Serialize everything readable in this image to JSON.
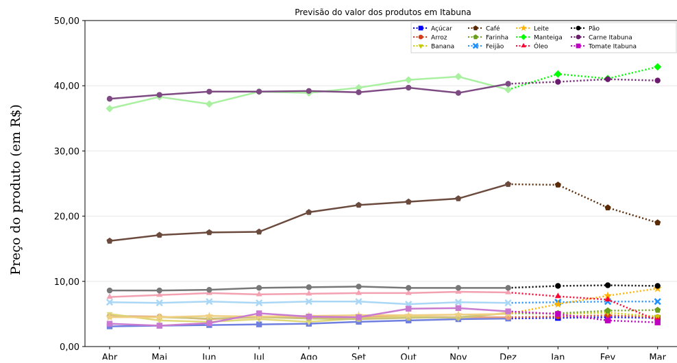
{
  "chart_data": {
    "type": "line",
    "title": "Previsão do valor dos produtos em Itabuna",
    "xlabel": "",
    "ylabel": "Preço do produto (em R$)",
    "categories": [
      "Abr",
      "Mai",
      "Jun",
      "Jul",
      "Ago",
      "Set",
      "Out",
      "Nov",
      "Dez",
      "Jan",
      "Fev",
      "Mar"
    ],
    "ylim": [
      0,
      50
    ],
    "yticks": [
      0,
      10,
      20,
      30,
      40,
      50
    ],
    "ytick_labels": [
      "0,00",
      "10,00",
      "20,00",
      "30,00",
      "40,00",
      "50,00"
    ],
    "legend_position": "top-right",
    "grid": "horizontal",
    "series": [
      {
        "name": "Açúcar",
        "marker": "square",
        "hist_color": "#6f7fe0",
        "fc_color": "#0000ff",
        "values": [
          3.1,
          3.2,
          3.3,
          3.4,
          3.5,
          3.8,
          4.0,
          4.2,
          4.3,
          4.4,
          4.5,
          4.4
        ]
      },
      {
        "name": "Arroz",
        "marker": "circle",
        "hist_color": "#e8a07c",
        "fc_color": "#d43d1a",
        "values": [
          4.7,
          4.6,
          4.2,
          4.5,
          4.4,
          4.5,
          4.6,
          4.5,
          4.5,
          4.6,
          4.8,
          4.5
        ]
      },
      {
        "name": "Banana",
        "marker": "triangle-down",
        "hist_color": "#e0d878",
        "fc_color": "#c9c900",
        "values": [
          5.0,
          4.0,
          3.8,
          4.2,
          3.8,
          4.3,
          4.6,
          4.4,
          5.2,
          5.0,
          5.2,
          4.6
        ]
      },
      {
        "name": "Café",
        "marker": "pentagon",
        "hist_color": "#6b4a3e",
        "fc_color": "#5a2a06",
        "values": [
          16.2,
          17.1,
          17.5,
          17.6,
          20.6,
          21.7,
          22.2,
          22.7,
          24.9,
          24.8,
          21.3,
          19.0
        ]
      },
      {
        "name": "Farinha",
        "marker": "pentagon",
        "hist_color": "#c9c27a",
        "fc_color": "#6b9e1a",
        "values": [
          4.6,
          4.5,
          4.3,
          4.5,
          4.3,
          4.2,
          4.4,
          4.5,
          5.1,
          5.1,
          5.5,
          5.6
        ]
      },
      {
        "name": "Feijão",
        "marker": "x",
        "hist_color": "#a9d7f5",
        "fc_color": "#1e90ff",
        "values": [
          6.8,
          6.7,
          6.9,
          6.7,
          6.9,
          6.9,
          6.5,
          6.8,
          6.7,
          6.8,
          6.9,
          6.9
        ]
      },
      {
        "name": "Leite",
        "marker": "star",
        "hist_color": "#f0d080",
        "fc_color": "#ffb300",
        "values": [
          4.5,
          4.5,
          4.7,
          4.6,
          4.7,
          4.8,
          4.8,
          4.9,
          5.0,
          6.5,
          7.8,
          8.9
        ]
      },
      {
        "name": "Manteiga",
        "marker": "diamond",
        "hist_color": "#a9f0a0",
        "fc_color": "#00ff00",
        "values": [
          36.5,
          38.3,
          37.2,
          39.1,
          38.9,
          39.7,
          40.9,
          41.4,
          39.4,
          41.8,
          41.1,
          42.9
        ]
      },
      {
        "name": "Óleo",
        "marker": "triangle-up",
        "hist_color": "#f3a0b0",
        "fc_color": "#ff0033",
        "values": [
          7.6,
          7.9,
          8.2,
          8.0,
          8.1,
          8.2,
          8.2,
          8.4,
          8.3,
          7.7,
          7.2,
          4.0
        ]
      },
      {
        "name": "Pão",
        "marker": "circle",
        "hist_color": "#777777",
        "fc_color": "#000000",
        "values": [
          8.6,
          8.6,
          8.7,
          9.0,
          9.1,
          9.2,
          9.0,
          9.0,
          9.0,
          9.3,
          9.4,
          9.3
        ]
      },
      {
        "name": "Carne Itabuna",
        "marker": "circle",
        "hist_color": "#7d4a82",
        "fc_color": "#6a1b6e",
        "values": [
          38.0,
          38.6,
          39.1,
          39.1,
          39.2,
          39.0,
          39.7,
          38.9,
          40.3,
          40.6,
          41.0,
          40.8
        ]
      },
      {
        "name": "Tomate Itabuna",
        "marker": "square",
        "hist_color": "#c77ad0",
        "fc_color": "#c000c0",
        "values": [
          3.5,
          3.2,
          3.6,
          5.1,
          4.6,
          4.5,
          5.8,
          5.9,
          5.4,
          5.0,
          4.0,
          3.7
        ]
      }
    ]
  }
}
